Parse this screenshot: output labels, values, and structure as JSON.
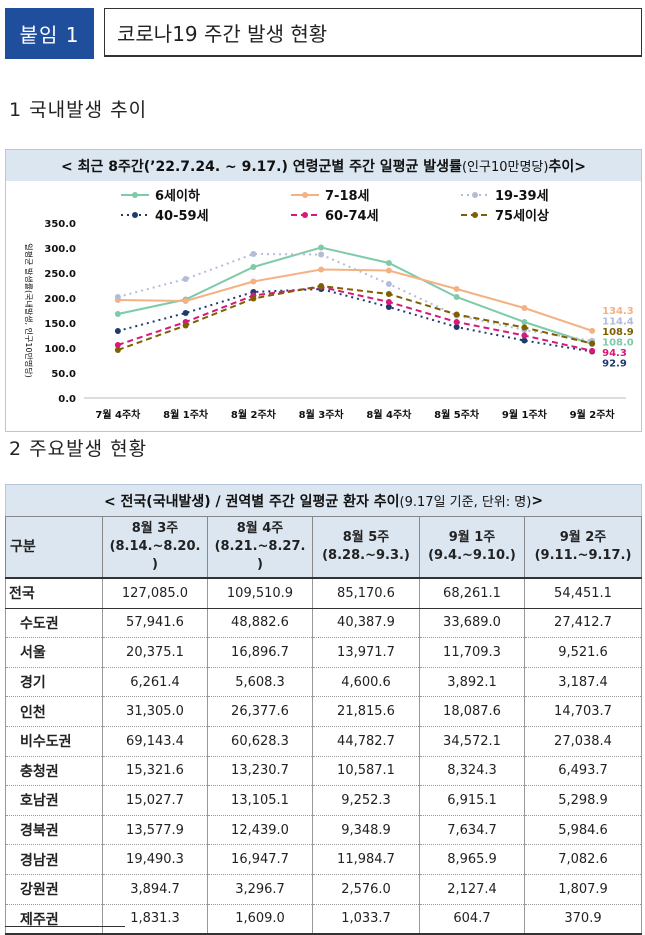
{
  "header": {
    "tag": "붙임 1",
    "title": "코로나19 주간 발생 현황"
  },
  "section1": {
    "title": "1  국내발생 추이"
  },
  "section2": {
    "title": "2  주요발생 현황"
  },
  "chart_data": {
    "type": "line",
    "title_main": "< 최근 8주간(’22.7.24. ~ 9.17.) 연령군별 주간 일평균 발생률",
    "title_small": "(인구10만명당)",
    "title_end": " 추이>",
    "ylabel": "일평균 발생률(국내발생, 인구10만명당)",
    "ylim": [
      0,
      350
    ],
    "yticks": [
      "0.0",
      "50.0",
      "100.0",
      "150.0",
      "200.0",
      "250.0",
      "300.0",
      "350.0"
    ],
    "categories": [
      "7월 4주차",
      "8월 1주차",
      "8월 2주차",
      "8월 3주차",
      "8월 4주차",
      "8월 5주차",
      "9월 1주차",
      "9월 2주차"
    ],
    "series": [
      {
        "name": "6세이하",
        "color": "#7fcaa9",
        "dash": "",
        "values": [
          168,
          197,
          262,
          301,
          270,
          202,
          152,
          108.0
        ]
      },
      {
        "name": "7-18세",
        "color": "#f4b183",
        "dash": "",
        "values": [
          196,
          194,
          233,
          257,
          255,
          218,
          180,
          134.3
        ]
      },
      {
        "name": "19-39세",
        "color": "#b4bcd8",
        "dash": "2,4",
        "values": [
          202,
          238,
          288,
          287,
          228,
          165,
          136,
          114.4
        ]
      },
      {
        "name": "40-59세",
        "color": "#1f3b6e",
        "dash": "2,4",
        "values": [
          134,
          170,
          212,
          218,
          182,
          142,
          115,
          92.9
        ]
      },
      {
        "name": "60-74세",
        "color": "#d6197a",
        "dash": "6,4",
        "values": [
          106,
          152,
          205,
          222,
          192,
          152,
          125,
          94.3
        ]
      },
      {
        "name": "75세이상",
        "color": "#7f6000",
        "dash": "6,4",
        "values": [
          96,
          145,
          199,
          224,
          208,
          167,
          141,
          108.9
        ]
      }
    ],
    "end_labels": [
      {
        "text": "134.3",
        "color": "#f4b183"
      },
      {
        "text": "114.4",
        "color": "#b4bcd8"
      },
      {
        "text": "108.9",
        "color": "#7f6000"
      },
      {
        "text": "108.0",
        "color": "#7fcaa9"
      },
      {
        "text": "94.3",
        "color": "#d6197a"
      },
      {
        "text": "92.9",
        "color": "#1f3b6e"
      }
    ]
  },
  "table": {
    "title_main": "< 전국(국내발생) / 권역별 주간 일평균 환자 추이 ",
    "title_small": "(9.17일 기준, 단위: 명)",
    "title_end": " >",
    "col0": "구분",
    "columns": [
      {
        "l1": "8월 3주",
        "l2": "(8.14.~8.20.",
        "l3": ")"
      },
      {
        "l1": "8월 4주",
        "l2": "(8.21.~8.27.",
        "l3": ")"
      },
      {
        "l1": "8월 5주",
        "l2": "(8.28.~9.3.)",
        "l3": ""
      },
      {
        "l1": "9월 1주",
        "l2": "(9.4.~9.10.)",
        "l3": ""
      },
      {
        "l1": "9월 2주",
        "l2": "(9.11.~9.17.)",
        "l3": ""
      }
    ],
    "rows": [
      {
        "region": "전국",
        "values": [
          "127,085.0",
          "109,510.9",
          "85,170.6",
          "68,261.1",
          "54,451.1"
        ]
      },
      {
        "region": "수도권",
        "values": [
          "57,941.6",
          "48,882.6",
          "40,387.9",
          "33,689.0",
          "27,412.7"
        ]
      },
      {
        "region": "서울",
        "values": [
          "20,375.1",
          "16,896.7",
          "13,971.7",
          "11,709.3",
          "9,521.6"
        ]
      },
      {
        "region": "경기",
        "values": [
          "6,261.4",
          "5,608.3",
          "4,600.6",
          "3,892.1",
          "3,187.4"
        ]
      },
      {
        "region": "인천",
        "values": [
          "31,305.0",
          "26,377.6",
          "21,815.6",
          "18,087.6",
          "14,703.7"
        ]
      },
      {
        "region": "비수도권",
        "values": [
          "69,143.4",
          "60,628.3",
          "44,782.7",
          "34,572.1",
          "27,038.4"
        ]
      },
      {
        "region": "충청권",
        "values": [
          "15,321.6",
          "13,230.7",
          "10,587.1",
          "8,324.3",
          "6,493.7"
        ]
      },
      {
        "region": "호남권",
        "values": [
          "15,027.7",
          "13,105.1",
          "9,252.3",
          "6,915.1",
          "5,298.9"
        ]
      },
      {
        "region": "경북권",
        "values": [
          "13,577.9",
          "12,439.0",
          "9,348.9",
          "7,634.7",
          "5,984.6"
        ]
      },
      {
        "region": "경남권",
        "values": [
          "19,490.3",
          "16,947.7",
          "11,984.7",
          "8,965.9",
          "7,082.6"
        ]
      },
      {
        "region": "강원권",
        "values": [
          "3,894.7",
          "3,296.7",
          "2,576.0",
          "2,127.4",
          "1,807.9"
        ]
      },
      {
        "region": "제주권",
        "values": [
          "1,831.3",
          "1,609.0",
          "1,033.7",
          "604.7",
          "370.9"
        ]
      }
    ]
  }
}
